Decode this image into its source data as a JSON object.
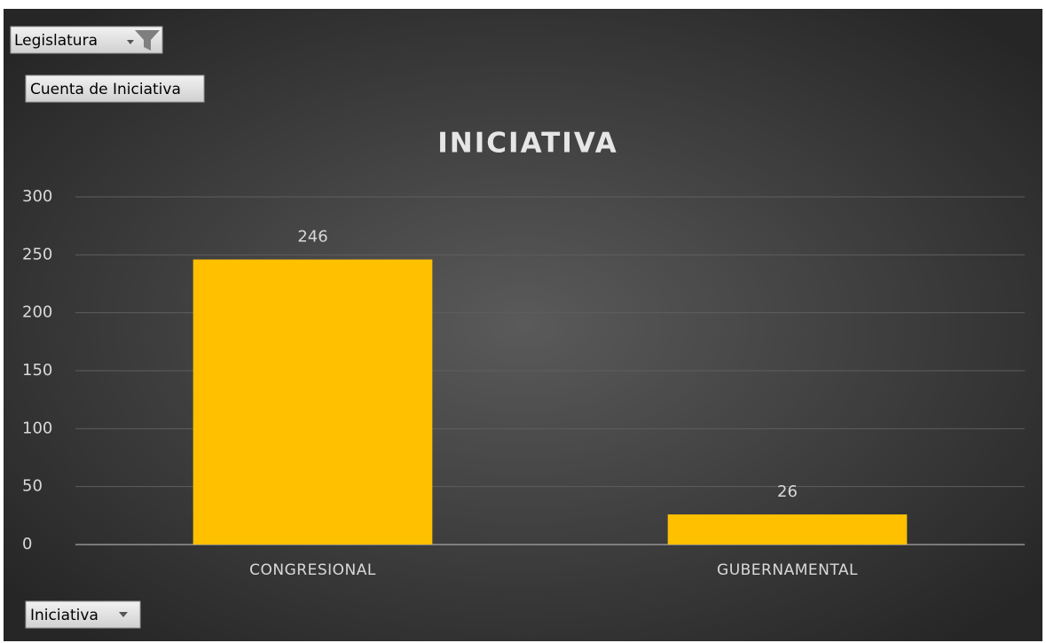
{
  "field_buttons": {
    "filter": "Legislatura",
    "values": "Cuenta de Iniciativa",
    "axis": "Iniciativa"
  },
  "chart_data": {
    "type": "bar",
    "title": "INICIATIVA",
    "categories": [
      "CONGRESIONAL",
      "GUBERNAMENTAL"
    ],
    "values": [
      246,
      26
    ],
    "color": "#ffc000",
    "ylim": [
      0,
      300
    ],
    "yticks": [
      0,
      50,
      100,
      150,
      200,
      250,
      300
    ],
    "grid": true
  }
}
